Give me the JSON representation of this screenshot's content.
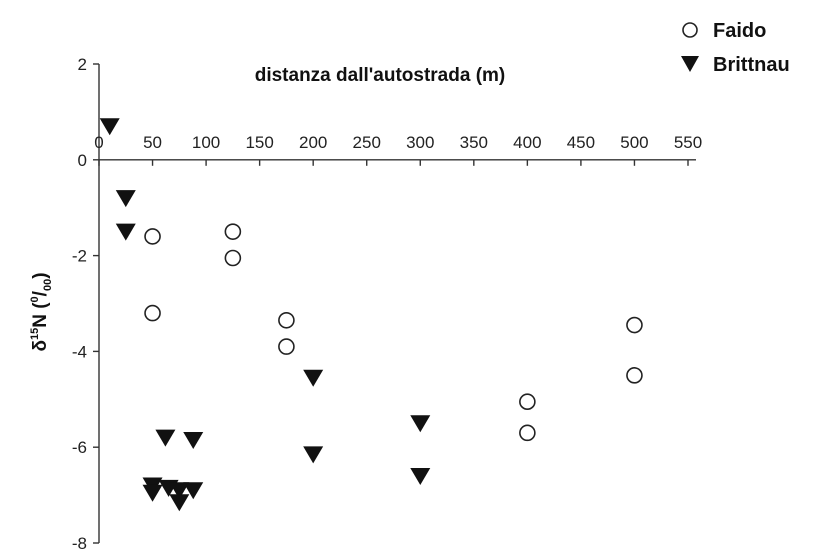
{
  "chart_data": {
    "type": "scatter",
    "title": "",
    "xlabel": "distanza dall'autostrada (m)",
    "ylabel_main": "δ",
    "ylabel_sup": "15",
    "ylabel_n": "N (",
    "ylabel_unit_sup": "0",
    "ylabel_unit_slash": "/",
    "ylabel_unit_sub": "00",
    "ylabel_close": ")",
    "xlim": [
      0,
      550
    ],
    "ylim": [
      -8,
      2
    ],
    "x_ticks": [
      0,
      50,
      100,
      150,
      200,
      250,
      300,
      350,
      400,
      450,
      500,
      550
    ],
    "y_ticks": [
      -8,
      -6,
      -4,
      -2,
      0,
      2
    ],
    "x_axis_position": "top (at y = 0)",
    "grid": false,
    "legend_position": "top-right",
    "series": [
      {
        "name": "Faido",
        "marker": "open-circle",
        "points": [
          {
            "x": 50,
            "y": -1.6
          },
          {
            "x": 50,
            "y": -3.2
          },
          {
            "x": 125,
            "y": -1.5
          },
          {
            "x": 125,
            "y": -2.05
          },
          {
            "x": 175,
            "y": -3.35
          },
          {
            "x": 175,
            "y": -3.9
          },
          {
            "x": 400,
            "y": -5.05
          },
          {
            "x": 400,
            "y": -5.7
          },
          {
            "x": 500,
            "y": -3.45
          },
          {
            "x": 500,
            "y": -4.5
          }
        ]
      },
      {
        "name": "Brittnau",
        "marker": "filled-down-triangle",
        "points": [
          {
            "x": 10,
            "y": 0.7
          },
          {
            "x": 25,
            "y": -0.8
          },
          {
            "x": 25,
            "y": -1.5
          },
          {
            "x": 50,
            "y": -6.8
          },
          {
            "x": 50,
            "y": -6.95
          },
          {
            "x": 62,
            "y": -5.8
          },
          {
            "x": 65,
            "y": -6.85
          },
          {
            "x": 75,
            "y": -6.9
          },
          {
            "x": 75,
            "y": -7.15
          },
          {
            "x": 88,
            "y": -5.85
          },
          {
            "x": 88,
            "y": -6.9
          },
          {
            "x": 200,
            "y": -4.55
          },
          {
            "x": 200,
            "y": -6.15
          },
          {
            "x": 300,
            "y": -5.5
          },
          {
            "x": 300,
            "y": -6.6
          }
        ]
      }
    ]
  }
}
